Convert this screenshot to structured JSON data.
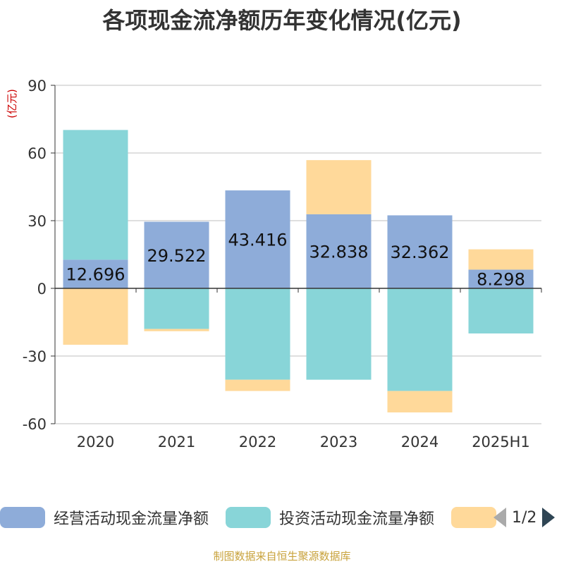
{
  "title": "各项现金流净额历年变化情况(亿元)",
  "footer": "制图数据来自恒生聚源数据库",
  "chart_data": {
    "type": "bar",
    "stacked": true,
    "categories": [
      "2020",
      "2021",
      "2022",
      "2023",
      "2024",
      "2025H1"
    ],
    "ylabel": "(亿元)",
    "ylim": [
      -60,
      90
    ],
    "yticks": [
      90,
      60,
      30,
      0,
      -30,
      -60
    ],
    "grid": true,
    "legend_position": "bottom",
    "series": [
      {
        "name": "经营活动现金流量净额",
        "color": "#8eacd9",
        "values": [
          12.696,
          29.522,
          43.416,
          32.838,
          32.362,
          8.298
        ],
        "labels": [
          "12.696",
          "29.522",
          "43.416",
          "32.838",
          "32.362",
          "8.298"
        ]
      },
      {
        "name": "投资活动现金流量净额",
        "color": "#88d5d8",
        "values": [
          57.5,
          -18.0,
          -40.5,
          -40.5,
          -45.5,
          -20.0
        ]
      },
      {
        "name": "",
        "color": "#ffd99a",
        "values": [
          -25.0,
          -1.0,
          -5.0,
          24.0,
          -9.5,
          9.0
        ]
      }
    ]
  },
  "legend": {
    "page_text": "1/2"
  }
}
